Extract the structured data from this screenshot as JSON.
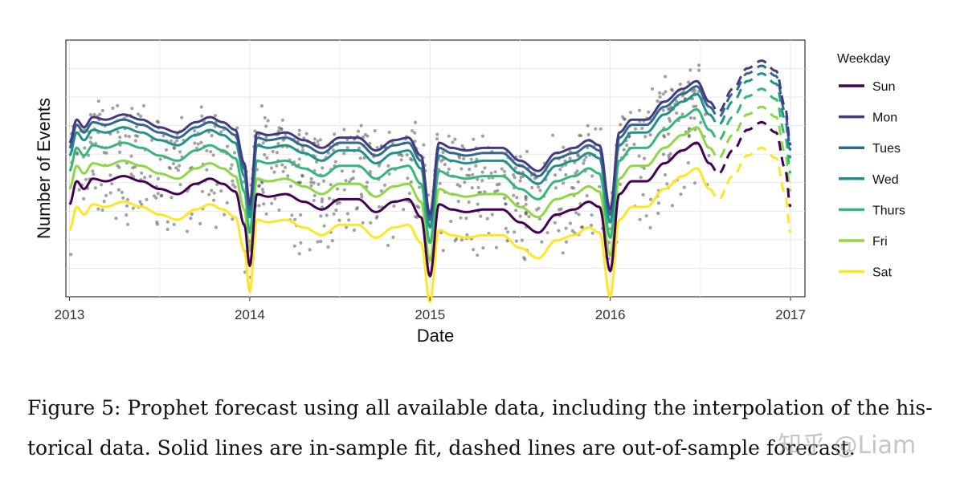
{
  "chart_data": {
    "type": "line",
    "xlabel": "Date",
    "ylabel": "Number of Events",
    "x_ticks": [
      2013,
      2014,
      2015,
      2016,
      2017
    ],
    "xlim": [
      2012.98,
      2017.08
    ],
    "ylim": [
      0,
      100
    ],
    "grid": true,
    "legend": {
      "title": "Weekday",
      "placement": "right",
      "entries": [
        "Sun",
        "Mon",
        "Tues",
        "Wed",
        "Thurs",
        "Fri",
        "Sat"
      ]
    },
    "fit_end": 2016.55,
    "forecast_end": 2017.0,
    "base_curve": {
      "x": [
        2013.0,
        2013.04,
        2013.08,
        2013.13,
        2013.2,
        2013.3,
        2013.4,
        2013.5,
        2013.6,
        2013.7,
        2013.78,
        2013.85,
        2013.92,
        2013.97,
        2014.0,
        2014.04,
        2014.1,
        2014.2,
        2014.3,
        2014.4,
        2014.5,
        2014.6,
        2014.7,
        2014.8,
        2014.88,
        2014.95,
        2015.0,
        2015.05,
        2015.12,
        2015.2,
        2015.3,
        2015.4,
        2015.5,
        2015.6,
        2015.7,
        2015.8,
        2015.88,
        2015.94,
        2016.0,
        2016.05,
        2016.12,
        2016.2,
        2016.3,
        2016.4,
        2016.48,
        2016.55,
        2016.6,
        2016.68,
        2016.76,
        2016.84,
        2016.92,
        2016.97,
        2017.0
      ],
      "y": [
        36,
        45,
        42,
        46,
        45,
        47,
        45,
        42,
        40,
        44,
        46,
        44,
        41,
        28,
        12,
        40,
        39,
        40,
        37,
        34,
        38,
        38,
        33,
        37,
        38,
        31,
        8,
        36,
        34,
        33,
        34,
        34,
        29,
        25,
        32,
        34,
        37,
        35,
        10,
        40,
        45,
        45,
        52,
        57,
        60,
        52,
        48,
        57,
        65,
        68,
        64,
        50,
        35
      ]
    },
    "series": [
      {
        "name": "Sun",
        "offset": 0,
        "color": "#440154"
      },
      {
        "name": "Mon",
        "offset": 24,
        "color": "#443a83"
      },
      {
        "name": "Tues",
        "offset": 22,
        "color": "#31688e"
      },
      {
        "name": "Wed",
        "offset": 19,
        "color": "#21918c"
      },
      {
        "name": "Thurs",
        "offset": 13,
        "color": "#35b779"
      },
      {
        "name": "Fri",
        "offset": 6,
        "color": "#8fd744"
      },
      {
        "name": "Sat",
        "offset": -10,
        "color": "#fde725"
      }
    ],
    "scatter_color": "#555555"
  },
  "caption": {
    "line1": "Figure 5: Prophet forecast using all available data, including the interpolation of the his-",
    "line2": "torical data. Solid lines are in-sample fit, dashed lines are out-of-sample forecast."
  },
  "watermark": "知乎 @Liam"
}
